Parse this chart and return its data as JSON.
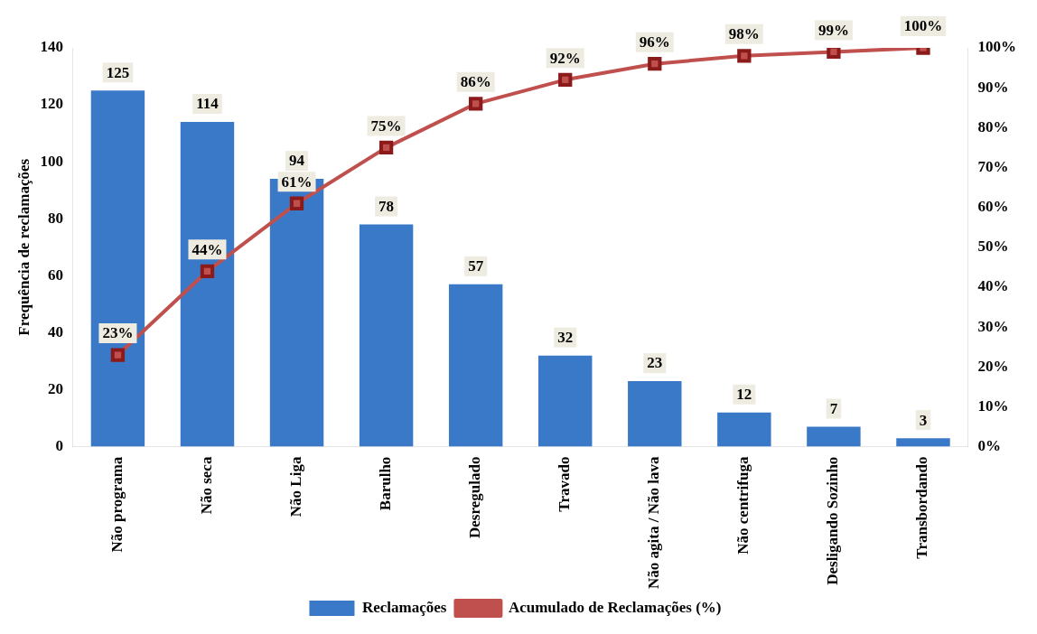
{
  "chart_data": {
    "type": "bar",
    "ylabel": "Frequência de reclamações",
    "categories": [
      "Não programa",
      "Não seca",
      "Não Liga",
      "Barulho",
      "Desregulado",
      "Travado",
      "Não agita / Não lava",
      "Não centrifuga",
      "Desligando Sozinho",
      "Transbordando"
    ],
    "series": [
      {
        "name": "Reclamações",
        "color": "#3a78c8",
        "values": [
          125,
          114,
          94,
          78,
          57,
          32,
          23,
          12,
          7,
          3
        ],
        "value_labels": [
          "125",
          "114",
          "94",
          "78",
          "57",
          "32",
          "23",
          "12",
          "7",
          "3"
        ]
      },
      {
        "name": "Acumulado de Reclamações (%)",
        "type": "line",
        "axis": "y2",
        "color": "#c0504d",
        "values": [
          23,
          44,
          61,
          75,
          86,
          92,
          96,
          98,
          99,
          100
        ],
        "value_labels": [
          "23%",
          "44%",
          "61%",
          "75%",
          "86%",
          "92%",
          "96%",
          "98%",
          "99%",
          "100%"
        ]
      }
    ],
    "ylim": [
      0,
      140
    ],
    "yticks": [
      0,
      20,
      40,
      60,
      80,
      100,
      120,
      140
    ],
    "y2lim": [
      0,
      100
    ],
    "y2ticks": [
      {
        "value": 0,
        "label": "0%"
      },
      {
        "value": 10,
        "label": "10%"
      },
      {
        "value": 20,
        "label": "20%"
      },
      {
        "value": 30,
        "label": "30%"
      },
      {
        "value": 40,
        "label": "40%"
      },
      {
        "value": 50,
        "label": "50%"
      },
      {
        "value": 60,
        "label": "60%"
      },
      {
        "value": 70,
        "label": "70%"
      },
      {
        "value": 80,
        "label": "80%"
      },
      {
        "value": 90,
        "label": "90%"
      },
      {
        "value": 100,
        "label": "100%"
      }
    ],
    "grid": false,
    "legend": "bottom",
    "marker": "square",
    "line_style": "solid"
  }
}
